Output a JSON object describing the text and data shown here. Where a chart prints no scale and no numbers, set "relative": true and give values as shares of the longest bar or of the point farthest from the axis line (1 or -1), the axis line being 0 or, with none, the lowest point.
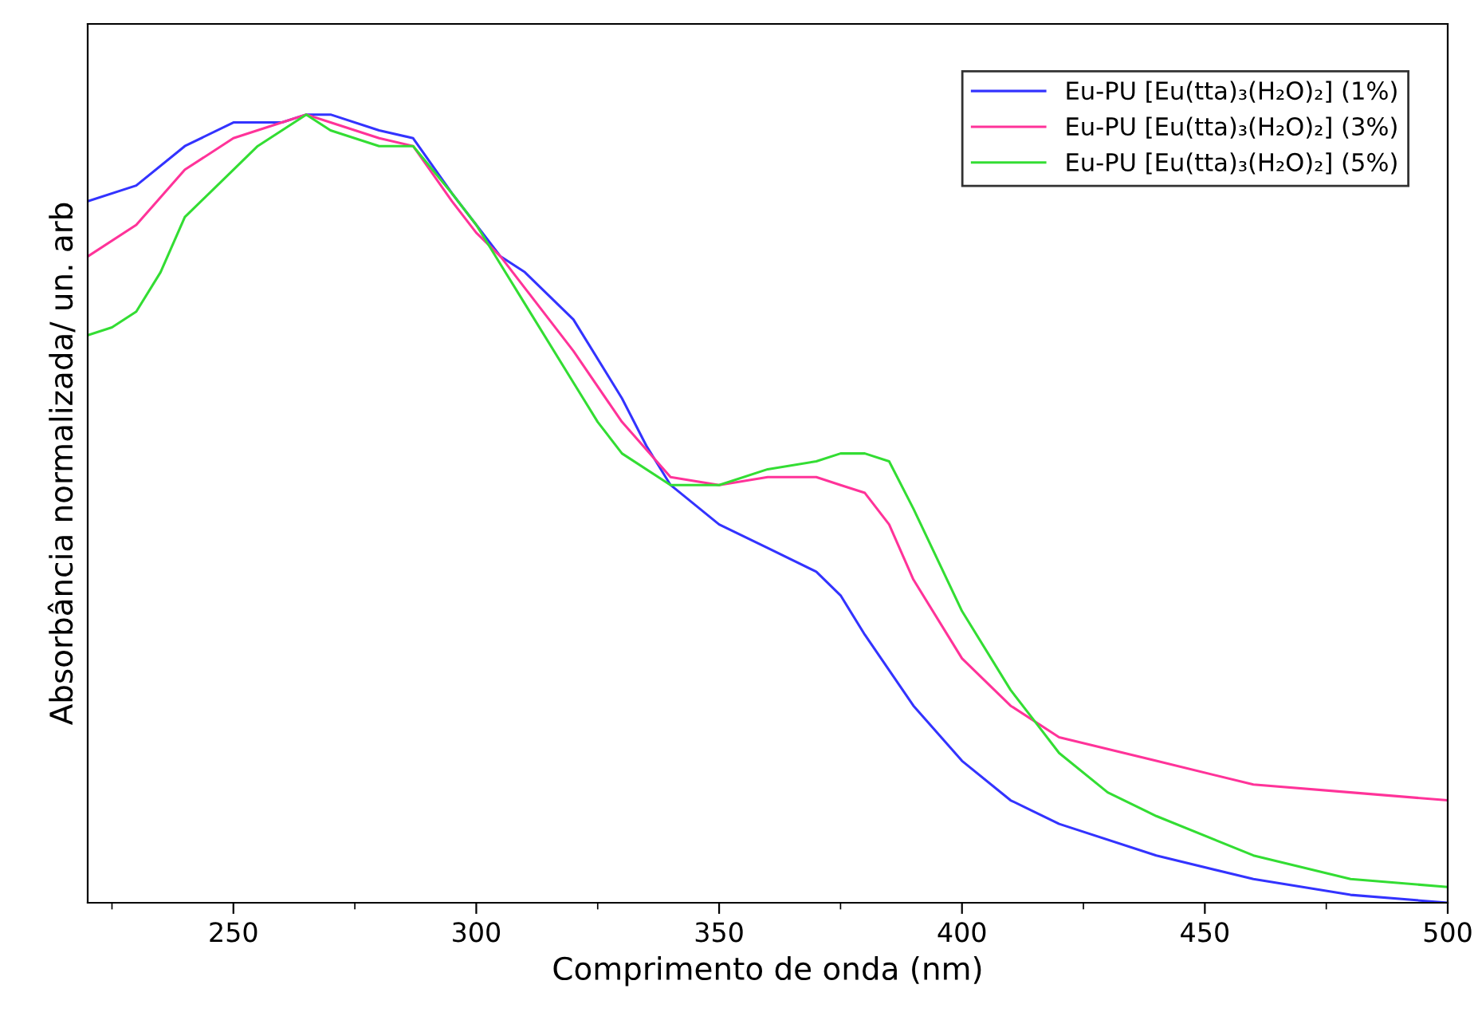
{
  "chart_data": {
    "type": "line",
    "relative": true,
    "xlabel": "Comprimento de onda (nm)",
    "ylabel": "Absorbância normalizada/ un. arb",
    "xlim": [
      220,
      500
    ],
    "xticks": [
      {
        "value": 225,
        "label": null
      },
      250,
      {
        "value": 275,
        "label": null
      },
      300,
      {
        "value": 325,
        "label": null
      },
      350,
      {
        "value": 375,
        "label": null
      },
      400,
      {
        "value": 425,
        "label": null
      },
      450,
      {
        "value": 475,
        "label": null
      },
      500
    ],
    "legend": "top right",
    "grid": false,
    "marker": "none",
    "line_style": "solid",
    "series": [
      {
        "name": "Eu-PU [Eu(tta)₃(H₂O)₂] (1%)",
        "color": "#3333ff",
        "x": [
          220,
          230,
          240,
          250,
          260,
          265,
          270,
          280,
          287,
          295,
          300,
          305,
          310,
          320,
          330,
          335,
          340,
          350,
          360,
          370,
          375,
          380,
          390,
          400,
          410,
          420,
          440,
          460,
          480,
          500
        ],
        "values": [
          0.89,
          0.91,
          0.96,
          0.99,
          0.99,
          1.0,
          1.0,
          0.98,
          0.97,
          0.9,
          0.86,
          0.82,
          0.8,
          0.74,
          0.64,
          0.58,
          0.53,
          0.48,
          0.45,
          0.42,
          0.39,
          0.34,
          0.25,
          0.18,
          0.13,
          0.1,
          0.06,
          0.03,
          0.01,
          0.0
        ]
      },
      {
        "name": "Eu-PU [Eu(tta)₃(H₂O)₂] (3%)",
        "color": "#ff3399",
        "x": [
          220,
          230,
          240,
          250,
          260,
          265,
          270,
          280,
          287,
          295,
          300,
          305,
          310,
          320,
          330,
          340,
          350,
          360,
          370,
          375,
          380,
          385,
          390,
          400,
          410,
          420,
          440,
          460,
          480,
          500
        ],
        "values": [
          0.82,
          0.86,
          0.93,
          0.97,
          0.99,
          1.0,
          0.99,
          0.97,
          0.96,
          0.89,
          0.85,
          0.82,
          0.78,
          0.7,
          0.61,
          0.54,
          0.53,
          0.54,
          0.54,
          0.53,
          0.52,
          0.48,
          0.41,
          0.31,
          0.25,
          0.21,
          0.18,
          0.15,
          0.14,
          0.13
        ]
      },
      {
        "name": "Eu-PU [Eu(tta)₃(H₂O)₂] (5%)",
        "color": "#33dd33",
        "x": [
          220,
          225,
          230,
          235,
          240,
          250,
          255,
          260,
          265,
          270,
          280,
          287,
          295,
          300,
          305,
          310,
          320,
          325,
          330,
          340,
          350,
          360,
          370,
          375,
          380,
          385,
          390,
          400,
          410,
          415,
          420,
          430,
          440,
          460,
          480,
          500
        ],
        "values": [
          0.72,
          0.73,
          0.75,
          0.8,
          0.87,
          0.93,
          0.96,
          0.98,
          1.0,
          0.98,
          0.96,
          0.96,
          0.9,
          0.86,
          0.81,
          0.76,
          0.66,
          0.61,
          0.57,
          0.53,
          0.53,
          0.55,
          0.56,
          0.57,
          0.57,
          0.56,
          0.5,
          0.37,
          0.27,
          0.23,
          0.19,
          0.14,
          0.11,
          0.06,
          0.03,
          0.02
        ]
      }
    ]
  }
}
